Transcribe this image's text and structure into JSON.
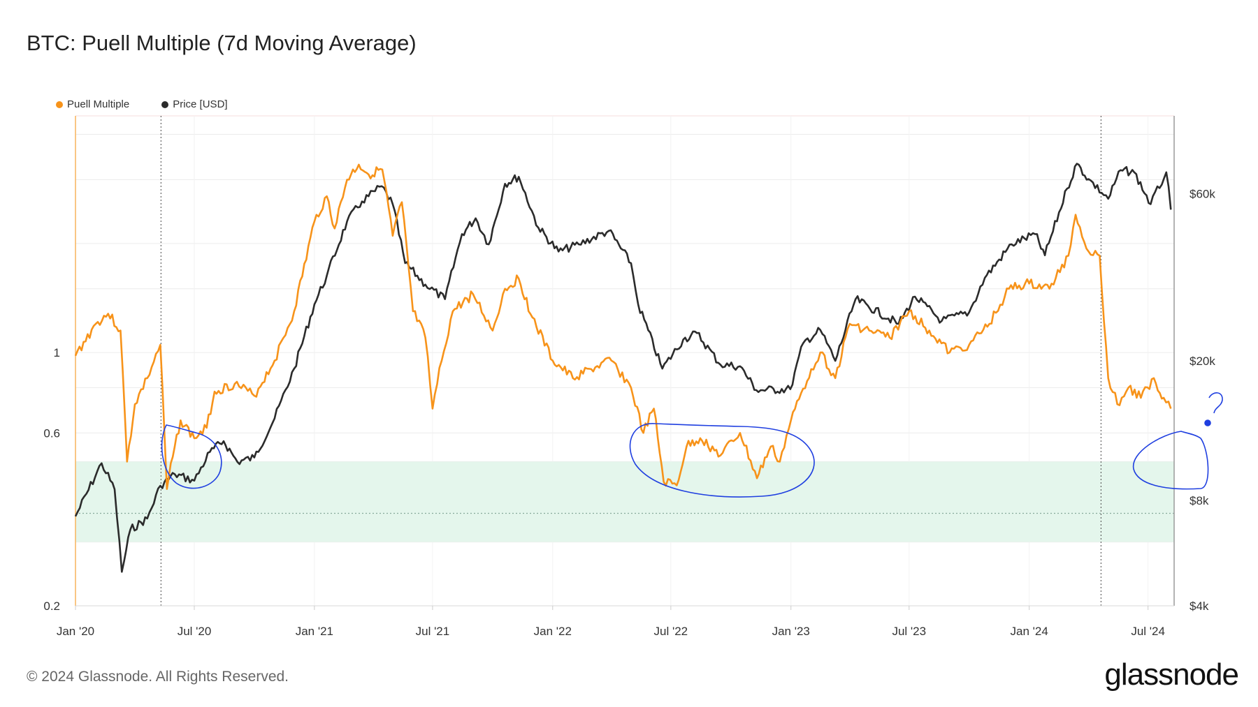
{
  "title": "BTC: Puell Multiple (7d Moving Average)",
  "footer": {
    "copyright": "© 2024 Glassnode. All Rights Reserved.",
    "brand": "glassnode"
  },
  "annotation": {
    "question_mark": "?"
  },
  "colors": {
    "puell": "#f7931a",
    "price": "#2b2b2b",
    "band": "#e4f6ec",
    "annotation": "#1f3fe0"
  },
  "chart_data": {
    "type": "line",
    "title": "BTC: Puell Multiple (7d Moving Average)",
    "legend_position": "top-left",
    "grid": true,
    "x_axis": {
      "range": [
        "2020-01-01",
        "2024-08-10"
      ],
      "ticks": [
        "Jan '20",
        "Jul '20",
        "Jan '21",
        "Jul '21",
        "Jan '22",
        "Jul '22",
        "Jan '23",
        "Jul '23",
        "Jan '24",
        "Jul '24"
      ]
    },
    "y_left": {
      "scale": "log",
      "range": [
        0.2,
        4.5
      ],
      "ticks": [
        "1",
        "0.6",
        "0.2"
      ]
    },
    "y_right": {
      "scale": "log",
      "range": [
        4000,
        100000
      ],
      "ticks": [
        "$60k",
        "$20k",
        "$8k",
        "$4k"
      ]
    },
    "shaded_band": {
      "axis": "left",
      "range": [
        0.3,
        0.5
      ]
    },
    "reference_line": {
      "axis": "left",
      "value": 0.36
    },
    "event_lines": [
      "2020-05-11",
      "2024-04-20"
    ],
    "series": [
      {
        "name": "Puell Multiple",
        "axis": "left",
        "points": [
          [
            "2020-01-01",
            0.98
          ],
          [
            "2020-02-01",
            1.2
          ],
          [
            "2020-02-20",
            1.28
          ],
          [
            "2020-03-10",
            1.15
          ],
          [
            "2020-03-20",
            0.5
          ],
          [
            "2020-04-01",
            0.72
          ],
          [
            "2020-04-20",
            0.85
          ],
          [
            "2020-05-10",
            1.05
          ],
          [
            "2020-05-20",
            0.42
          ],
          [
            "2020-06-01",
            0.55
          ],
          [
            "2020-06-10",
            0.65
          ],
          [
            "2020-07-01",
            0.58
          ],
          [
            "2020-07-20",
            0.62
          ],
          [
            "2020-08-01",
            0.78
          ],
          [
            "2020-09-01",
            0.82
          ],
          [
            "2020-10-01",
            0.76
          ],
          [
            "2020-11-01",
            0.95
          ],
          [
            "2020-12-01",
            1.3
          ],
          [
            "2021-01-01",
            2.3
          ],
          [
            "2021-01-20",
            2.7
          ],
          [
            "2021-02-01",
            2.2
          ],
          [
            "2021-02-20",
            3.0
          ],
          [
            "2021-03-10",
            3.3
          ],
          [
            "2021-03-25",
            3.1
          ],
          [
            "2021-04-15",
            3.2
          ],
          [
            "2021-05-01",
            2.1
          ],
          [
            "2021-05-15",
            2.6
          ],
          [
            "2021-06-01",
            1.3
          ],
          [
            "2021-06-20",
            1.1
          ],
          [
            "2021-07-01",
            0.7
          ],
          [
            "2021-07-15",
            0.95
          ],
          [
            "2021-08-01",
            1.3
          ],
          [
            "2021-09-01",
            1.45
          ],
          [
            "2021-10-01",
            1.15
          ],
          [
            "2021-10-20",
            1.5
          ],
          [
            "2021-11-10",
            1.6
          ],
          [
            "2021-12-01",
            1.25
          ],
          [
            "2022-01-01",
            0.95
          ],
          [
            "2022-02-01",
            0.85
          ],
          [
            "2022-03-01",
            0.9
          ],
          [
            "2022-04-01",
            0.95
          ],
          [
            "2022-05-01",
            0.8
          ],
          [
            "2022-05-20",
            0.6
          ],
          [
            "2022-06-05",
            0.7
          ],
          [
            "2022-06-20",
            0.44
          ],
          [
            "2022-07-10",
            0.43
          ],
          [
            "2022-07-25",
            0.55
          ],
          [
            "2022-08-15",
            0.58
          ],
          [
            "2022-09-15",
            0.52
          ],
          [
            "2022-10-15",
            0.6
          ],
          [
            "2022-11-10",
            0.45
          ],
          [
            "2022-12-01",
            0.55
          ],
          [
            "2022-12-15",
            0.5
          ],
          [
            "2023-01-01",
            0.65
          ],
          [
            "2023-02-01",
            0.9
          ],
          [
            "2023-02-15",
            1.0
          ],
          [
            "2023-03-10",
            0.85
          ],
          [
            "2023-04-01",
            1.2
          ],
          [
            "2023-05-01",
            1.15
          ],
          [
            "2023-06-01",
            1.1
          ],
          [
            "2023-07-01",
            1.3
          ],
          [
            "2023-08-01",
            1.15
          ],
          [
            "2023-09-01",
            1.0
          ],
          [
            "2023-10-01",
            1.05
          ],
          [
            "2023-11-01",
            1.2
          ],
          [
            "2023-12-01",
            1.5
          ],
          [
            "2024-01-01",
            1.55
          ],
          [
            "2024-02-01",
            1.5
          ],
          [
            "2024-03-01",
            1.85
          ],
          [
            "2024-03-12",
            2.4
          ],
          [
            "2024-04-01",
            1.9
          ],
          [
            "2024-04-18",
            1.85
          ],
          [
            "2024-05-01",
            0.85
          ],
          [
            "2024-05-15",
            0.72
          ],
          [
            "2024-06-01",
            0.8
          ],
          [
            "2024-06-20",
            0.75
          ],
          [
            "2024-07-10",
            0.85
          ],
          [
            "2024-07-25",
            0.75
          ],
          [
            "2024-08-05",
            0.7
          ]
        ]
      },
      {
        "name": "Price [USD]",
        "axis": "right",
        "points": [
          [
            "2020-01-01",
            7200
          ],
          [
            "2020-02-10",
            10200
          ],
          [
            "2020-03-01",
            8600
          ],
          [
            "2020-03-12",
            5000
          ],
          [
            "2020-03-25",
            6600
          ],
          [
            "2020-04-20",
            7100
          ],
          [
            "2020-05-10",
            8800
          ],
          [
            "2020-06-01",
            9500
          ],
          [
            "2020-07-01",
            9100
          ],
          [
            "2020-07-25",
            11000
          ],
          [
            "2020-08-15",
            11800
          ],
          [
            "2020-09-05",
            10300
          ],
          [
            "2020-10-01",
            10600
          ],
          [
            "2020-11-01",
            13700
          ],
          [
            "2020-12-01",
            19000
          ],
          [
            "2021-01-01",
            29000
          ],
          [
            "2021-01-20",
            35000
          ],
          [
            "2021-02-20",
            50000
          ],
          [
            "2021-03-15",
            57000
          ],
          [
            "2021-04-14",
            63000
          ],
          [
            "2021-05-01",
            56000
          ],
          [
            "2021-05-20",
            38000
          ],
          [
            "2021-06-20",
            33000
          ],
          [
            "2021-07-20",
            30000
          ],
          [
            "2021-08-15",
            46000
          ],
          [
            "2021-09-05",
            51000
          ],
          [
            "2021-09-25",
            43000
          ],
          [
            "2021-10-20",
            64000
          ],
          [
            "2021-11-10",
            67000
          ],
          [
            "2021-12-10",
            48000
          ],
          [
            "2022-01-10",
            41000
          ],
          [
            "2022-02-10",
            43000
          ],
          [
            "2022-03-28",
            47000
          ],
          [
            "2022-05-01",
            38000
          ],
          [
            "2022-05-12",
            29000
          ],
          [
            "2022-06-18",
            19000
          ],
          [
            "2022-07-20",
            23000
          ],
          [
            "2022-08-10",
            24000
          ],
          [
            "2022-09-15",
            19500
          ],
          [
            "2022-10-15",
            19300
          ],
          [
            "2022-11-09",
            16500
          ],
          [
            "2022-12-31",
            16600
          ],
          [
            "2023-01-20",
            22500
          ],
          [
            "2023-02-15",
            24500
          ],
          [
            "2023-03-10",
            20000
          ],
          [
            "2023-04-10",
            30000
          ],
          [
            "2023-06-15",
            25500
          ],
          [
            "2023-07-10",
            30500
          ],
          [
            "2023-08-20",
            26000
          ],
          [
            "2023-10-01",
            27500
          ],
          [
            "2023-10-25",
            34500
          ],
          [
            "2023-12-05",
            43000
          ],
          [
            "2024-01-10",
            46000
          ],
          [
            "2024-01-25",
            40000
          ],
          [
            "2024-02-28",
            62000
          ],
          [
            "2024-03-14",
            73000
          ],
          [
            "2024-04-01",
            66000
          ],
          [
            "2024-05-01",
            58000
          ],
          [
            "2024-05-20",
            70000
          ],
          [
            "2024-06-10",
            69000
          ],
          [
            "2024-07-05",
            56000
          ],
          [
            "2024-07-29",
            69000
          ],
          [
            "2024-08-05",
            54000
          ]
        ]
      }
    ]
  }
}
